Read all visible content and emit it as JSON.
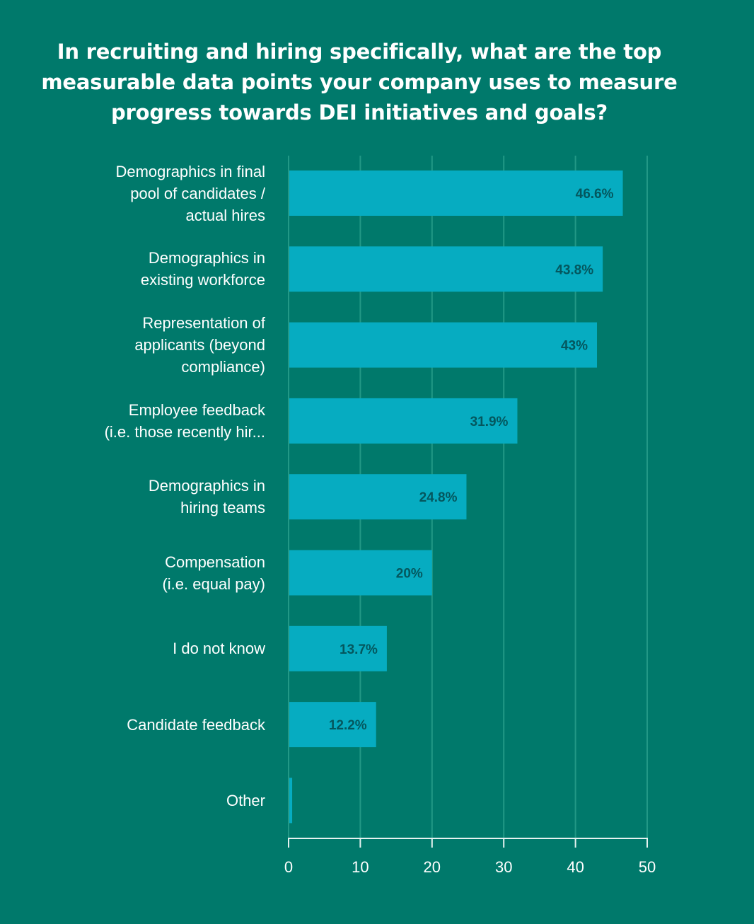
{
  "chart_data": {
    "type": "bar",
    "orientation": "horizontal",
    "title": "In recruiting and hiring specifically, what are the top measurable data points your company uses to measure progress towards DEI initiatives and goals?",
    "categories": [
      [
        "Demographics in final",
        "pool of candidates /",
        "actual hires"
      ],
      [
        "Demographics in",
        "existing workforce"
      ],
      [
        "Representation of",
        "applicants (beyond",
        "compliance)"
      ],
      [
        "Employee feedback",
        "(i.e. those recently hir..."
      ],
      [
        "Demographics in",
        "hiring teams"
      ],
      [
        "Compensation",
        "(i.e. equal pay)"
      ],
      [
        "I do not know"
      ],
      [
        "Candidate feedback"
      ],
      [
        "Other"
      ]
    ],
    "values": [
      46.6,
      43.8,
      43,
      31.9,
      24.8,
      20,
      13.7,
      12.2,
      0.5
    ],
    "data_labels": [
      "46.6%",
      "43.8%",
      "43%",
      "31.9%",
      "24.8%",
      "20%",
      "13.7%",
      "12.2%",
      ""
    ],
    "xlim": [
      0,
      50
    ],
    "xticks": [
      0,
      10,
      20,
      30,
      40,
      50
    ],
    "xtick_labels": [
      "0",
      "10",
      "20",
      "30",
      "40",
      "50"
    ],
    "xlabel": "",
    "ylabel": "",
    "grid": true,
    "legend": "none",
    "colors": {
      "background": "#00796b",
      "bar": "#06acc1",
      "grid": "#229886",
      "axis": "#e6f2f0",
      "data_label": "#04575e",
      "text": "#ffffff"
    }
  }
}
